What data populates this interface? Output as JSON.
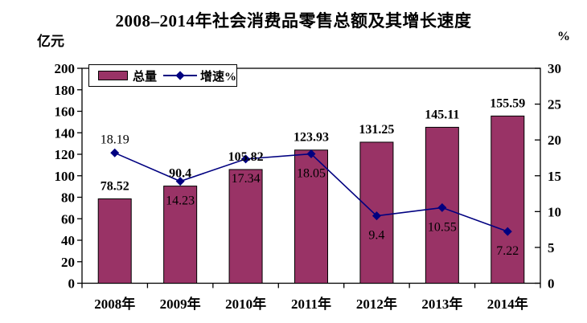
{
  "chart_data": {
    "type": "bar+line",
    "title": "2008–2014年社会消费品零售总额及其增长速度",
    "categories": [
      "2008年",
      "2009年",
      "2010年",
      "2011年",
      "2012年",
      "2013年",
      "2014年"
    ],
    "series": [
      {
        "name": "总量",
        "type": "bar",
        "axis": "left",
        "color": "#993366",
        "border_color": "#000000",
        "values": [
          78.52,
          90.4,
          105.82,
          123.93,
          131.25,
          145.11,
          155.59
        ]
      },
      {
        "name": "增速%",
        "type": "line",
        "axis": "right",
        "color": "#000080",
        "marker": "diamond",
        "values": [
          18.19,
          14.23,
          17.34,
          18.05,
          9.4,
          10.55,
          7.22
        ],
        "label_placement": [
          "above",
          "below",
          "below",
          "below",
          "below",
          "below",
          "below"
        ]
      }
    ],
    "left_axis": {
      "label": "亿元",
      "min": 0,
      "max": 200,
      "step": 20,
      "ticks": [
        200,
        180,
        160,
        140,
        120,
        100,
        80,
        60,
        40,
        20,
        0
      ]
    },
    "right_axis": {
      "label": "%",
      "min": 0,
      "max": 30,
      "step": 5,
      "ticks": [
        30,
        25,
        20,
        15,
        10,
        5,
        0
      ]
    },
    "legend": {
      "position": "top-left-inside",
      "items": [
        "总量",
        "增速%"
      ]
    },
    "grid": false,
    "plot_background": "#ffffff",
    "axis_color": "#000000"
  }
}
